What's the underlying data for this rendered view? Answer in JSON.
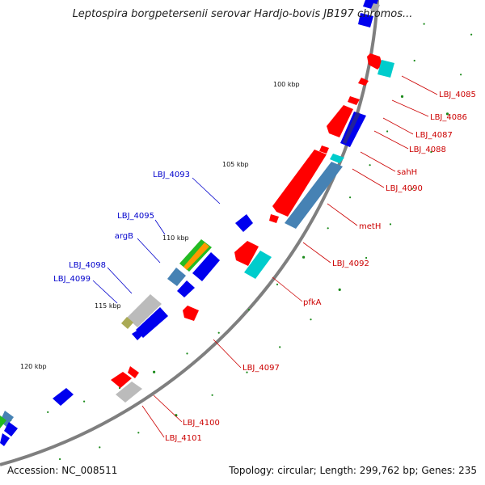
{
  "title": "Leptospira borgpetersenii serovar Hardjo-bovis JB197 chromos...",
  "footer": {
    "accession": "Accession: NC_008511",
    "summary": "Topology: circular; Length: 299,762 bp; Genes: 235"
  },
  "colors": {
    "forward_label": "#0000cc",
    "reverse_label": "#cc0000",
    "backbone": "#808080",
    "tick": "#1a8a1a",
    "gene_red": "#ff0000",
    "gene_blue": "#0000ee",
    "gene_steel": "#4682b4",
    "gene_cyan": "#00cccc",
    "gene_gray": "#bbbbbb"
  },
  "scale_labels": [
    "100 kbp",
    "105 kbp",
    "110 kbp",
    "115 kbp",
    "120 kbp"
  ],
  "forward_labels": [
    "LBJ_4093",
    "LBJ_4095",
    "argB",
    "LBJ_4098",
    "LBJ_4099"
  ],
  "reverse_labels": [
    "LBJ_4085",
    "LBJ_4086",
    "LBJ_4087",
    "LBJ_4088",
    "sahH",
    "LBJ_4090",
    "metH",
    "LBJ_4092",
    "pfkA",
    "LBJ_4097",
    "LBJ_4100",
    "LBJ_4101"
  ]
}
